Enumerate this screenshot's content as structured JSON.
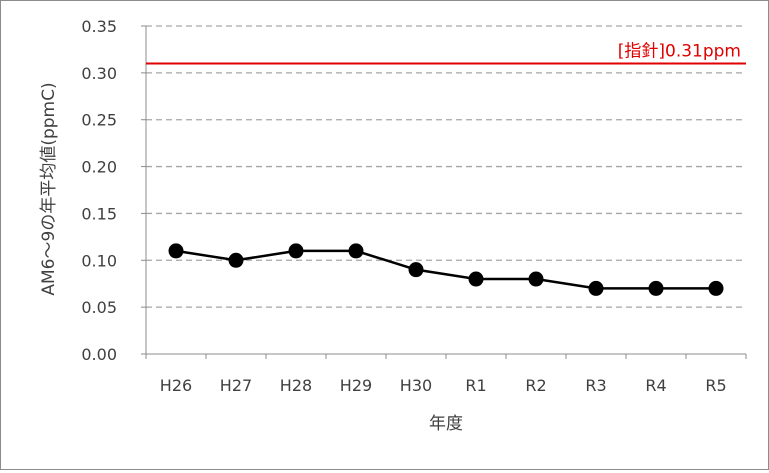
{
  "chart_data": {
    "type": "line",
    "title": "",
    "xlabel": "年度",
    "ylabel": "AM6～9の年平均値(ppmC)",
    "categories": [
      "H26",
      "H27",
      "H28",
      "H29",
      "H30",
      "R1",
      "R2",
      "R3",
      "R4",
      "R5"
    ],
    "series": [
      {
        "values": [
          0.11,
          0.1,
          0.11,
          0.11,
          0.09,
          0.08,
          0.08,
          0.07,
          0.07,
          0.07
        ]
      }
    ],
    "ylim": [
      0,
      0.35
    ],
    "yticks": [
      "0.00",
      "0.05",
      "0.10",
      "0.15",
      "0.20",
      "0.25",
      "0.30",
      "0.35"
    ],
    "grid": "horizontal-dashed",
    "reference_line": {
      "value": 0.31,
      "label": "[指針]0.31ppm",
      "color": "#e00000"
    },
    "colors": {
      "series": "#000000",
      "grid": "#a6a6a6",
      "axis": "#8c8c8c",
      "text": "#404040"
    }
  }
}
